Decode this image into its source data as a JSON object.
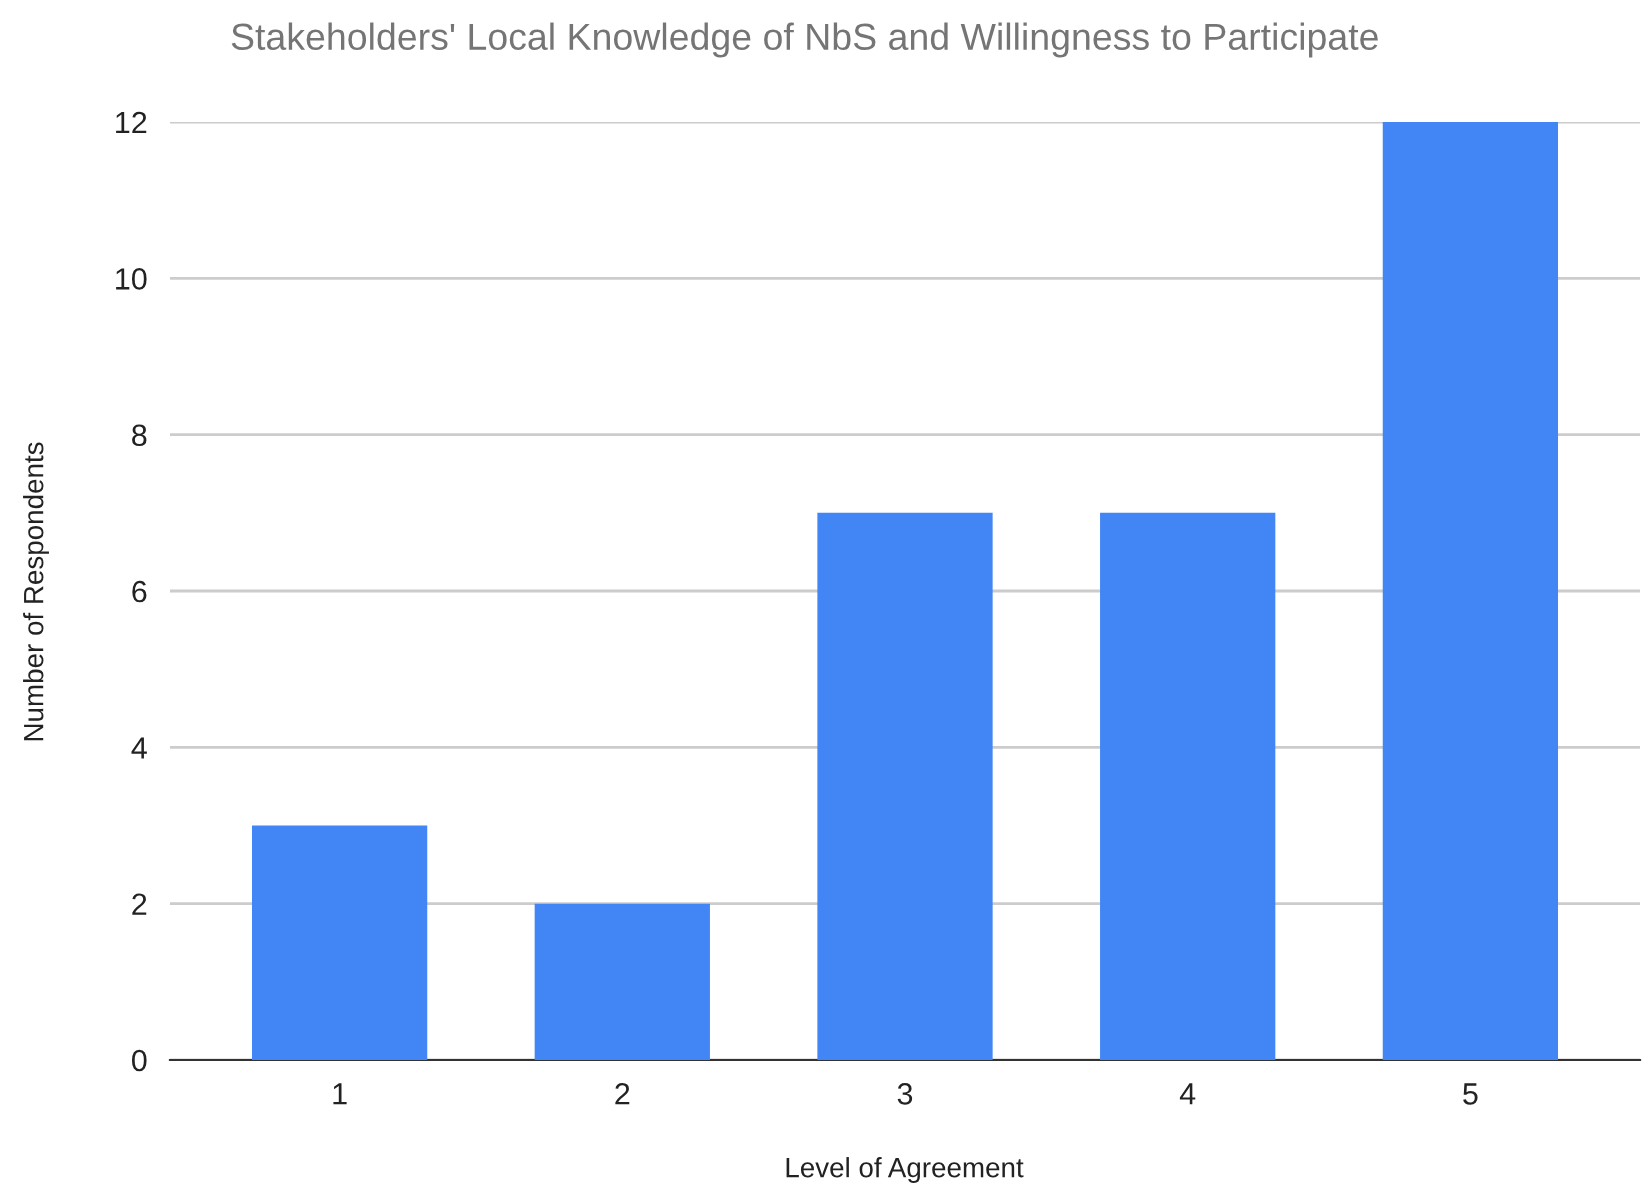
{
  "chart_data": {
    "type": "bar",
    "title": "Stakeholders' Local Knowledge of NbS and Willingness to Participate",
    "xlabel": "Level of Agreement",
    "ylabel": "Number of Respondents",
    "categories": [
      "1",
      "2",
      "3",
      "4",
      "5"
    ],
    "values": [
      3,
      2,
      7,
      7,
      12
    ],
    "color": "#4285f4",
    "ylim": [
      0,
      12
    ],
    "yticks": [
      0,
      2,
      4,
      6,
      8,
      10,
      12
    ],
    "grid": "y",
    "legend": false
  }
}
